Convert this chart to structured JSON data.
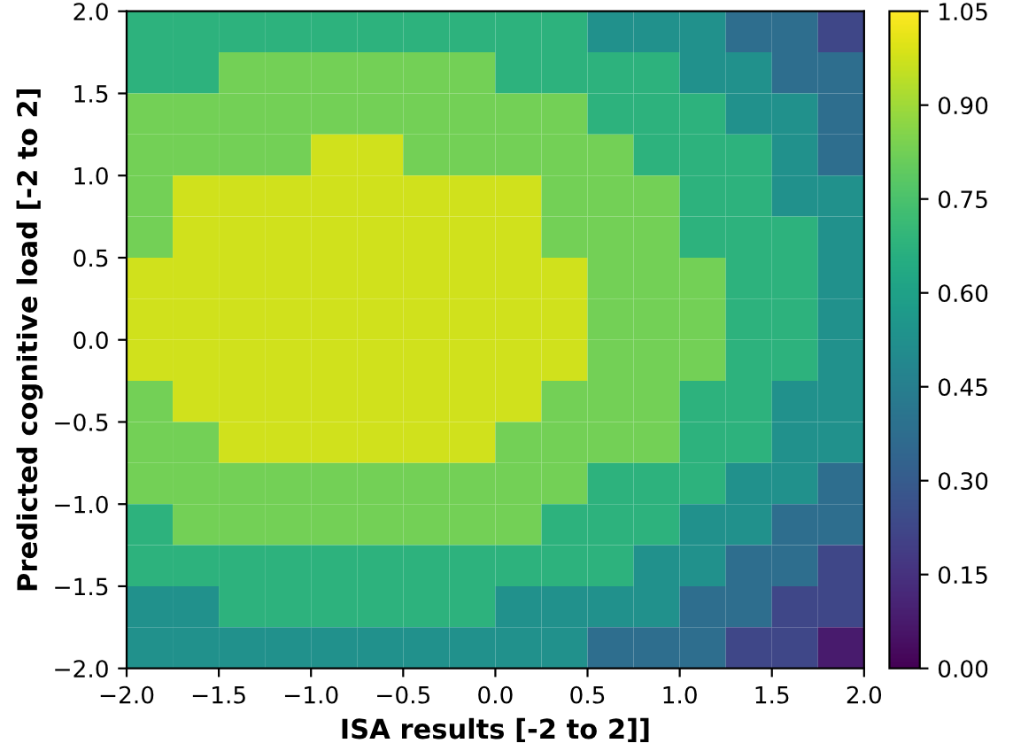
{
  "chart_data": {
    "type": "heatmap",
    "xlabel": "ISA results [-2 to 2]]",
    "ylabel": "Predicted cognitive load [-2 to 2]",
    "xlim": [
      -2,
      2
    ],
    "ylim": [
      -2,
      2
    ],
    "xticks": [
      {
        "value": -2,
        "label": "−2.0"
      },
      {
        "value": -1.5,
        "label": "−1.5"
      },
      {
        "value": -1,
        "label": "−1.0"
      },
      {
        "value": -0.5,
        "label": "−0.5"
      },
      {
        "value": 0,
        "label": "0.0"
      },
      {
        "value": 0.5,
        "label": "0.5"
      },
      {
        "value": 1,
        "label": "1.0"
      },
      {
        "value": 1.5,
        "label": "1.5"
      },
      {
        "value": 2,
        "label": "2.0"
      }
    ],
    "yticks": [
      {
        "value": -2,
        "label": "−2.0"
      },
      {
        "value": -1.5,
        "label": "−1.5"
      },
      {
        "value": -1,
        "label": "−1.0"
      },
      {
        "value": -0.5,
        "label": "−0.5"
      },
      {
        "value": 0,
        "label": "0.0"
      },
      {
        "value": 0.5,
        "label": "0.5"
      },
      {
        "value": 1,
        "label": "1.0"
      },
      {
        "value": 1.5,
        "label": "1.5"
      },
      {
        "value": 2,
        "label": "2.0"
      }
    ],
    "clim": [
      0,
      1.05
    ],
    "cticks": [
      {
        "value": 0,
        "label": "0.00"
      },
      {
        "value": 0.15,
        "label": "0.15"
      },
      {
        "value": 0.3,
        "label": "0.30"
      },
      {
        "value": 0.45,
        "label": "0.45"
      },
      {
        "value": 0.6,
        "label": "0.60"
      },
      {
        "value": 0.75,
        "label": "0.75"
      },
      {
        "value": 0.9,
        "label": "0.90"
      },
      {
        "value": 1.05,
        "label": "1.05"
      }
    ],
    "cells": [
      [
        0.675,
        0.675,
        0.675,
        0.675,
        0.675,
        0.675,
        0.675,
        0.675,
        0.675,
        0.675,
        0.525,
        0.525,
        0.525,
        0.375,
        0.375,
        0.225
      ],
      [
        0.675,
        0.675,
        0.825,
        0.825,
        0.825,
        0.825,
        0.825,
        0.825,
        0.675,
        0.675,
        0.675,
        0.675,
        0.525,
        0.525,
        0.375,
        0.375
      ],
      [
        0.825,
        0.825,
        0.825,
        0.825,
        0.825,
        0.825,
        0.825,
        0.825,
        0.825,
        0.825,
        0.675,
        0.675,
        0.675,
        0.525,
        0.525,
        0.375
      ],
      [
        0.825,
        0.825,
        0.825,
        0.825,
        0.975,
        0.975,
        0.825,
        0.825,
        0.825,
        0.825,
        0.825,
        0.675,
        0.675,
        0.675,
        0.525,
        0.375
      ],
      [
        0.825,
        0.975,
        0.975,
        0.975,
        0.975,
        0.975,
        0.975,
        0.975,
        0.975,
        0.825,
        0.825,
        0.825,
        0.675,
        0.675,
        0.525,
        0.525
      ],
      [
        0.825,
        0.975,
        0.975,
        0.975,
        0.975,
        0.975,
        0.975,
        0.975,
        0.975,
        0.825,
        0.825,
        0.825,
        0.675,
        0.675,
        0.675,
        0.525
      ],
      [
        0.975,
        0.975,
        0.975,
        0.975,
        0.975,
        0.975,
        0.975,
        0.975,
        0.975,
        0.975,
        0.825,
        0.825,
        0.825,
        0.675,
        0.675,
        0.525
      ],
      [
        0.975,
        0.975,
        0.975,
        0.975,
        0.975,
        0.975,
        0.975,
        0.975,
        0.975,
        0.975,
        0.825,
        0.825,
        0.825,
        0.675,
        0.675,
        0.525
      ],
      [
        0.975,
        0.975,
        0.975,
        0.975,
        0.975,
        0.975,
        0.975,
        0.975,
        0.975,
        0.975,
        0.825,
        0.825,
        0.825,
        0.675,
        0.675,
        0.525
      ],
      [
        0.825,
        0.975,
        0.975,
        0.975,
        0.975,
        0.975,
        0.975,
        0.975,
        0.975,
        0.825,
        0.825,
        0.825,
        0.675,
        0.675,
        0.525,
        0.525
      ],
      [
        0.825,
        0.825,
        0.975,
        0.975,
        0.975,
        0.975,
        0.975,
        0.975,
        0.825,
        0.825,
        0.825,
        0.825,
        0.675,
        0.675,
        0.525,
        0.525
      ],
      [
        0.825,
        0.825,
        0.825,
        0.825,
        0.825,
        0.825,
        0.825,
        0.825,
        0.825,
        0.825,
        0.675,
        0.675,
        0.675,
        0.525,
        0.525,
        0.375
      ],
      [
        0.675,
        0.825,
        0.825,
        0.825,
        0.825,
        0.825,
        0.825,
        0.825,
        0.825,
        0.675,
        0.675,
        0.675,
        0.525,
        0.525,
        0.375,
        0.375
      ],
      [
        0.675,
        0.675,
        0.675,
        0.675,
        0.675,
        0.675,
        0.675,
        0.675,
        0.675,
        0.675,
        0.675,
        0.525,
        0.525,
        0.375,
        0.375,
        0.225
      ],
      [
        0.525,
        0.525,
        0.675,
        0.675,
        0.675,
        0.675,
        0.675,
        0.675,
        0.525,
        0.525,
        0.525,
        0.525,
        0.375,
        0.375,
        0.225,
        0.225
      ],
      [
        0.525,
        0.525,
        0.525,
        0.525,
        0.525,
        0.525,
        0.525,
        0.525,
        0.525,
        0.525,
        0.375,
        0.375,
        0.375,
        0.225,
        0.225,
        0.075
      ]
    ]
  }
}
